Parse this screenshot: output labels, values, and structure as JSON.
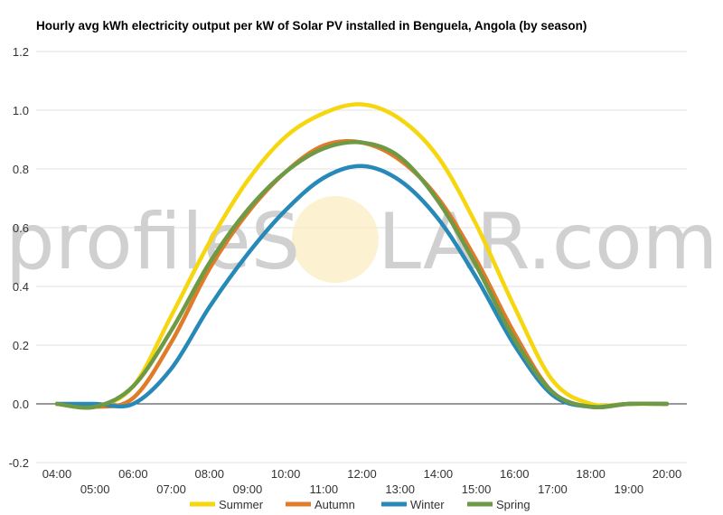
{
  "watermark": {
    "left": "profileS",
    "right": "LAR.com"
  },
  "chart_data": {
    "type": "line",
    "title": "Hourly avg kWh electricity output per kW of Solar PV installed in Benguela, Angola (by season)",
    "xlabel": "",
    "ylabel": "",
    "x": [
      4,
      5,
      6,
      7,
      8,
      9,
      10,
      11,
      12,
      13,
      14,
      15,
      16,
      17,
      18,
      19,
      20
    ],
    "x_tick_labels": [
      "04:00",
      "05:00",
      "06:00",
      "07:00",
      "08:00",
      "09:00",
      "10:00",
      "11:00",
      "12:00",
      "13:00",
      "14:00",
      "15:00",
      "16:00",
      "17:00",
      "18:00",
      "19:00",
      "20:00"
    ],
    "ylim": [
      -0.2,
      1.2
    ],
    "y_ticks": [
      -0.2,
      0.0,
      0.2,
      0.4,
      0.6,
      0.8,
      1.0,
      1.2
    ],
    "y_tick_labels": [
      "-0.2",
      "0.0",
      "0.2",
      "0.4",
      "0.6",
      "0.8",
      "1.0",
      "1.2"
    ],
    "grid": true,
    "legend_position": "bottom",
    "series": [
      {
        "name": "Summer",
        "color": "#f5d60f",
        "values": [
          0.0,
          -0.01,
          0.06,
          0.3,
          0.55,
          0.76,
          0.91,
          0.99,
          1.02,
          0.97,
          0.84,
          0.61,
          0.33,
          0.08,
          0.0,
          0.0,
          0.0
        ]
      },
      {
        "name": "Autumn",
        "color": "#e07b2a",
        "values": [
          0.0,
          -0.01,
          0.02,
          0.21,
          0.46,
          0.65,
          0.79,
          0.88,
          0.89,
          0.83,
          0.7,
          0.49,
          0.24,
          0.04,
          -0.01,
          0.0,
          0.0
        ]
      },
      {
        "name": "Winter",
        "color": "#2789b8",
        "values": [
          0.0,
          0.0,
          0.0,
          0.12,
          0.33,
          0.51,
          0.66,
          0.77,
          0.81,
          0.76,
          0.63,
          0.43,
          0.2,
          0.03,
          -0.01,
          0.0,
          0.0
        ]
      },
      {
        "name": "Spring",
        "color": "#6e9a45",
        "values": [
          0.0,
          -0.01,
          0.06,
          0.25,
          0.48,
          0.66,
          0.79,
          0.87,
          0.89,
          0.84,
          0.69,
          0.47,
          0.22,
          0.04,
          -0.01,
          0.0,
          0.0
        ]
      }
    ]
  }
}
